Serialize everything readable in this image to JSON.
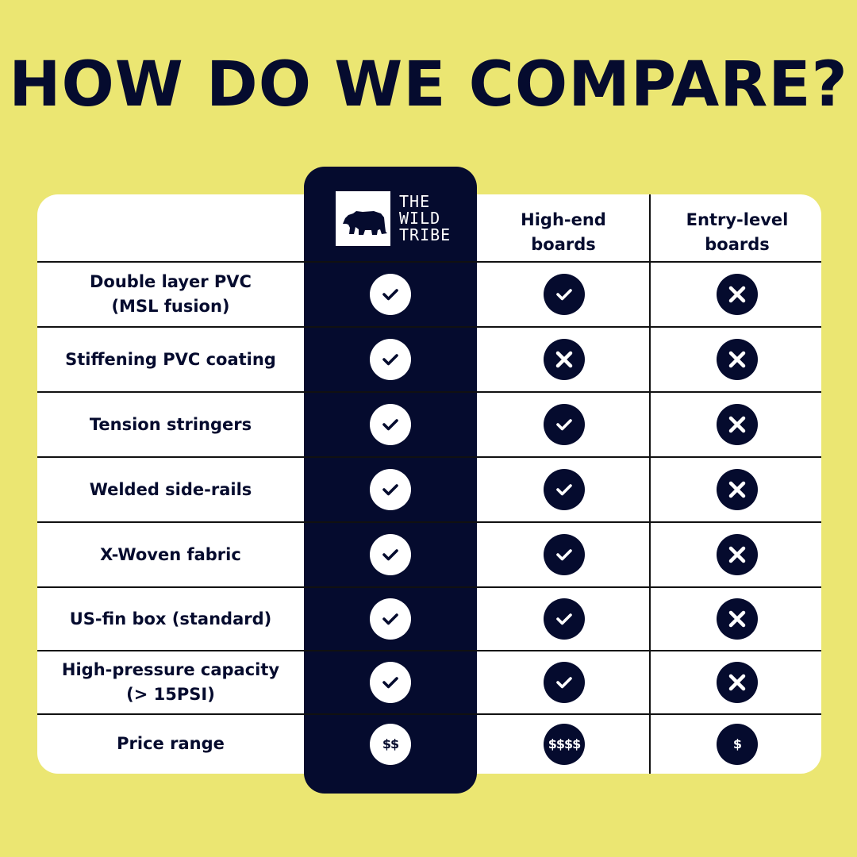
{
  "title": "HOW DO WE COMPARE?",
  "brand": {
    "logo_lines": [
      "THE",
      "WILD",
      "TRIBE"
    ],
    "logo_icon": "bear-icon"
  },
  "columns": [
    {
      "label_lines": [
        "High-end",
        "boards"
      ]
    },
    {
      "label_lines": [
        "Entry-level",
        "boards"
      ]
    }
  ],
  "colors": {
    "background": "#ebe672",
    "navy": "#050b2e",
    "card": "#ffffff"
  },
  "rows": [
    {
      "feature_lines": [
        "Double layer PVC",
        "(MSL fusion)"
      ],
      "values": [
        "check",
        "check",
        "cross"
      ]
    },
    {
      "feature_lines": [
        "Stiffening PVC coating"
      ],
      "values": [
        "check",
        "cross",
        "cross"
      ]
    },
    {
      "feature_lines": [
        "Tension stringers"
      ],
      "values": [
        "check",
        "check",
        "cross"
      ]
    },
    {
      "feature_lines": [
        "Welded side-rails"
      ],
      "values": [
        "check",
        "check",
        "cross"
      ]
    },
    {
      "feature_lines": [
        "X-Woven fabric"
      ],
      "values": [
        "check",
        "check",
        "cross"
      ]
    },
    {
      "feature_lines": [
        "US-fin box (standard)"
      ],
      "values": [
        "check",
        "check",
        "cross"
      ]
    },
    {
      "feature_lines": [
        "High-pressure capacity",
        "(> 15PSI)"
      ],
      "values": [
        "check",
        "check",
        "cross"
      ]
    },
    {
      "feature_lines": [
        "Price range"
      ],
      "values": [
        "$$",
        "$$$$",
        "$"
      ]
    }
  ]
}
